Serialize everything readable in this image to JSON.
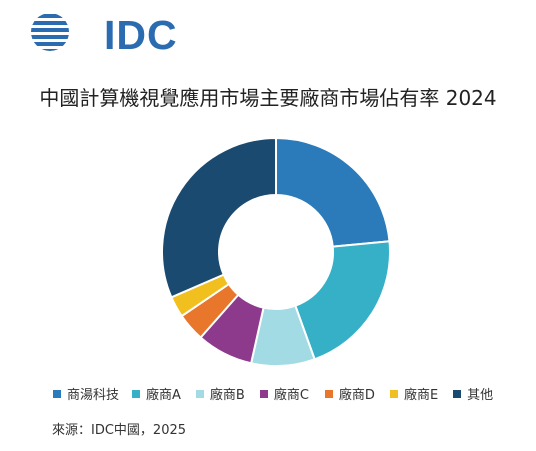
{
  "brand": {
    "logo_text": "IDC",
    "logo_color": "#2b6cb0"
  },
  "title": "中國計算機視覺應用市場主要廠商市場佔有率 2024",
  "source": "來源：IDC中國，2025",
  "chart_data": {
    "type": "pie",
    "style": "donut",
    "title": "中國計算機視覺應用市場主要廠商市場佔有率 2024",
    "legend_position": "bottom",
    "categories": [
      "商湯科技",
      "廠商A",
      "廠商B",
      "廠商C",
      "廠商D",
      "廠商E",
      "其他"
    ],
    "values": [
      23.5,
      21.0,
      9.0,
      8.0,
      4.0,
      3.0,
      31.5
    ],
    "colors": [
      "#2b7bba",
      "#36b0c6",
      "#a3dbe4",
      "#8e3a8c",
      "#e8762b",
      "#f2c01e",
      "#1b4a70"
    ]
  }
}
